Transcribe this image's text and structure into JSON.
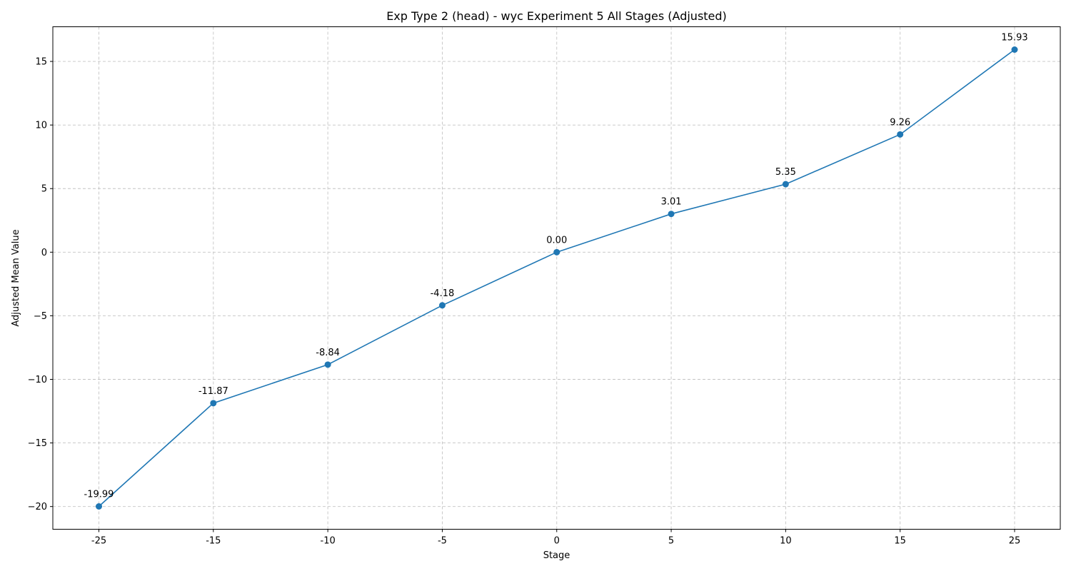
{
  "chart_data": {
    "type": "line",
    "title": "Exp Type 2 (head) - wyc Experiment 5 All Stages (Adjusted)",
    "xlabel": "Stage",
    "ylabel": "Adjusted Mean Value",
    "categories": [
      "-25",
      "-15",
      "-10",
      "-5",
      "0",
      "5",
      "10",
      "15",
      "25"
    ],
    "series": [
      {
        "values": [
          -19.99,
          -11.87,
          -8.84,
          -4.18,
          0.0,
          3.01,
          5.35,
          9.26,
          15.93
        ],
        "data_labels": [
          "-19.99",
          "-11.87",
          "-8.84",
          "-4.18",
          "0.00",
          "3.01",
          "5.35",
          "9.26",
          "15.93"
        ],
        "color": "#1f77b4",
        "marker": "circle"
      }
    ],
    "ylim": [
      -21.786,
      17.726
    ],
    "yticks": [
      -20,
      -15,
      -10,
      -5,
      0,
      5,
      10,
      15
    ],
    "ytick_labels": [
      "−20",
      "−15",
      "−10",
      "−5",
      "0",
      "5",
      "10",
      "15"
    ],
    "grid": true,
    "grid_style": "dashed",
    "grid_color": "#c4c4c4",
    "legend": "none"
  }
}
